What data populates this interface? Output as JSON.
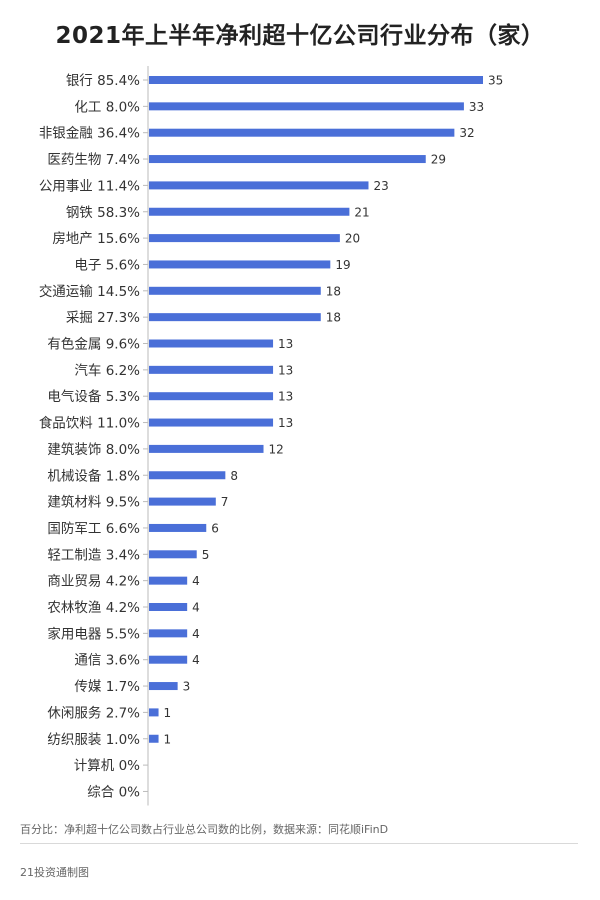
{
  "title": "2021年上半年净利超十亿公司行业分布（家）",
  "footnote": "百分比：净利超十亿公司数占行业总公司数的比例，数据来源：同花顺iFinD",
  "source": "21投资通制图",
  "colors": {
    "bar": "#4a6fd8",
    "axis": "#bbbbbb"
  },
  "chart_data": {
    "type": "bar",
    "orientation": "horizontal",
    "title": "2021年上半年净利超十亿公司行业分布（家）",
    "categories": [
      "银行 85.4%",
      "化工 8.0%",
      "非银金融 36.4%",
      "医药生物 7.4%",
      "公用事业 11.4%",
      "钢铁 58.3%",
      "房地产 15.6%",
      "电子 5.6%",
      "交通运输 14.5%",
      "采掘 27.3%",
      "有色金属 9.6%",
      "汽车 6.2%",
      "电气设备 5.3%",
      "食品饮料 11.0%",
      "建筑装饰 8.0%",
      "机械设备 1.8%",
      "建筑材料 9.5%",
      "国防军工 6.6%",
      "轻工制造 3.4%",
      "商业贸易 4.2%",
      "农林牧渔 4.2%",
      "家用电器 5.5%",
      "通信 3.6%",
      "传媒 1.7%",
      "休闲服务 2.7%",
      "纺织服装 1.0%",
      "计算机 0%",
      "综合 0%"
    ],
    "values": [
      35,
      33,
      32,
      29,
      23,
      21,
      20,
      19,
      18,
      18,
      13,
      13,
      13,
      13,
      12,
      8,
      7,
      6,
      5,
      4,
      4,
      4,
      4,
      3,
      1,
      1,
      0,
      0
    ],
    "xlim": [
      0,
      35
    ],
    "grid": false,
    "legend": "none"
  }
}
